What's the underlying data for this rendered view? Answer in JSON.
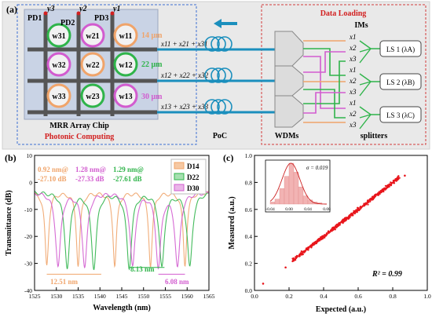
{
  "panels": {
    "a": "(a)",
    "b": "(b)",
    "c": "(c)"
  },
  "panel_a": {
    "chip_title": "MRR Array Chip",
    "photonic_label": "Photonic Computing",
    "data_loading_label": "Data Loading",
    "poc_label": "PoC",
    "wdms_label": "WDMs",
    "splitters_label": "splitters",
    "ims_label": "IMs",
    "pd_labels": [
      "PD1",
      "PD2",
      "PD3"
    ],
    "y_labels": [
      "y3",
      "y2",
      "y1"
    ],
    "rings": [
      [
        "w31",
        "w21",
        "w11"
      ],
      [
        "w32",
        "w22",
        "w12"
      ],
      [
        "w33",
        "w23",
        "w13"
      ]
    ],
    "channel_widths": [
      "14 μm",
      "22 μm",
      "30 μm"
    ],
    "sum_labels": [
      "x11 + x21 + x31",
      "x12 + x22 + x32",
      "x13 + x23 + x33"
    ],
    "x_labels": [
      "x1",
      "x2",
      "x3",
      "x1",
      "x2",
      "x3",
      "x1",
      "x2",
      "x3"
    ],
    "ls_labels": [
      "LS 1 (λA)",
      "LS 2 (λB)",
      "LS 3 (λC)"
    ],
    "colors": {
      "orange": "#f0a46a",
      "green": "#2fb44a",
      "pink": "#d25ccf",
      "teal": "#1b8fbd",
      "red": "#d21f1f"
    }
  },
  "chart_data": [
    {
      "type": "line",
      "xlabel": "Wavelength (nm)",
      "ylabel": "Transmittance (dB)",
      "xlim": [
        1525,
        1565
      ],
      "ylim": [
        -40,
        10
      ],
      "xticks": [
        1525,
        1530,
        1535,
        1540,
        1545,
        1550,
        1555,
        1560,
        1565
      ],
      "yticks": [
        -40,
        -30,
        -20,
        -10,
        0,
        10
      ],
      "series": [
        {
          "name": "D14",
          "color": "#f0a46a",
          "dips": [
            1527.8,
            1535.0,
            1543.4,
            1551.6,
            1559.5
          ],
          "depth": -27.1,
          "fwhm": 0.92
        },
        {
          "name": "D22",
          "color": "#2fb44a",
          "dips": [
            1532.5,
            1538.6,
            1546.7,
            1554.2,
            1560.6
          ],
          "depth": -27.61,
          "fwhm": 1.29
        },
        {
          "name": "D30",
          "color": "#d25ccf",
          "dips": [
            1530.4,
            1536.5,
            1547.5,
            1553.4,
            1557.8
          ],
          "depth": -27.33,
          "fwhm": 1.28
        }
      ],
      "annotations": [
        {
          "text": "0.92 nm@",
          "color": "#f0a46a"
        },
        {
          "text": "1.28 nm@",
          "color": "#d25ccf"
        },
        {
          "text": "1.29 nm@",
          "color": "#2fb44a"
        },
        {
          "text": "-27.10 dB",
          "color": "#f0a46a"
        },
        {
          "text": "-27.33 dB",
          "color": "#d25ccf"
        },
        {
          "text": "-27.61 dB",
          "color": "#2fb44a"
        },
        {
          "text": "12.51 nm",
          "color": "#f0a46a"
        },
        {
          "text": "8.13 nm",
          "color": "#2fb44a"
        },
        {
          "text": "6.08 nm",
          "color": "#d25ccf"
        }
      ]
    },
    {
      "type": "scatter",
      "xlabel": "Expected (a.u.)",
      "ylabel": "Measured (a.u.)",
      "xlim": [
        0.0,
        1.0
      ],
      "ylim": [
        0.0,
        1.0
      ],
      "xticks": [
        0.0,
        0.2,
        0.4,
        0.6,
        0.8,
        1.0
      ],
      "yticks": [
        0.0,
        0.2,
        0.4,
        0.6,
        0.8,
        1.0
      ],
      "r2_label": "R² = 0.99",
      "point_color": "#e8151b",
      "points_range": [
        0.05,
        0.87
      ],
      "inset": {
        "type": "histogram",
        "sigma_label": "σ = 0.019",
        "xlim": [
          -0.04,
          0.08
        ],
        "xticks": [
          -0.04,
          0.0,
          0.04,
          0.08
        ],
        "xtick_labels": [
          "-0.04",
          "0.00",
          "0.04",
          "0.08"
        ],
        "bins": [
          -0.035,
          -0.025,
          -0.015,
          -0.005,
          0.005,
          0.015,
          0.025,
          0.035,
          0.045,
          0.055,
          0.065
        ],
        "counts": [
          0.05,
          0.12,
          0.38,
          0.68,
          1.0,
          0.78,
          0.42,
          0.2,
          0.1,
          0.05,
          0.03
        ]
      }
    }
  ]
}
